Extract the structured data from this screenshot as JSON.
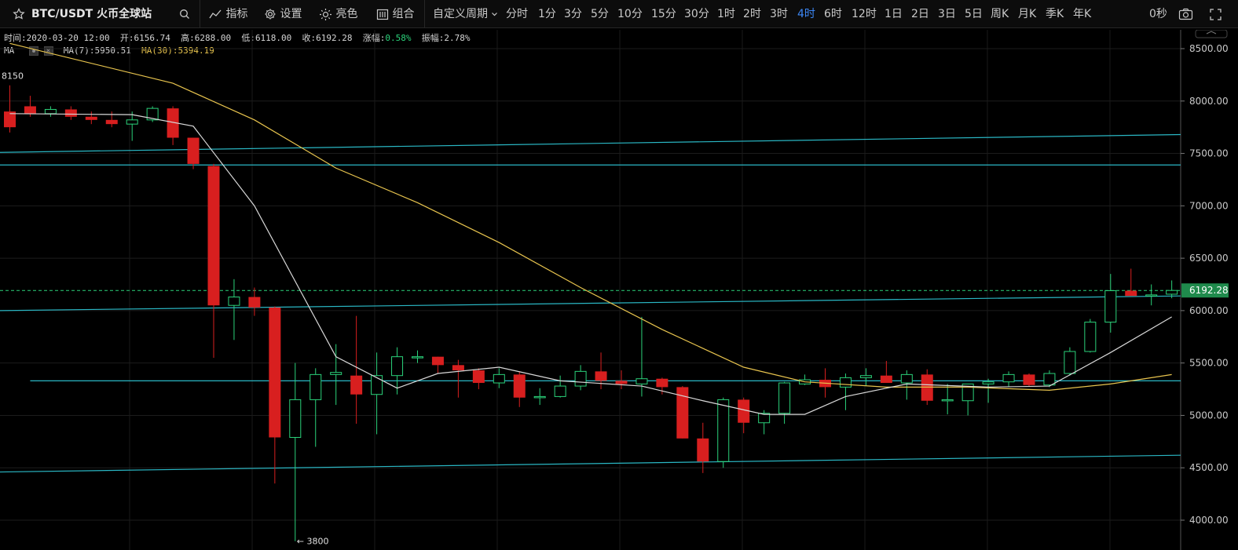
{
  "toolbar": {
    "symbol": "BTC/USDT 火币全球站",
    "buttons": [
      "指标",
      "设置",
      "亮色",
      "组合"
    ],
    "custom_period": "自定义周期",
    "periods": [
      "分时",
      "1分",
      "3分",
      "5分",
      "10分",
      "15分",
      "30分",
      "1时",
      "2时",
      "3时",
      "4时",
      "6时",
      "12时",
      "1日",
      "2日",
      "3日",
      "5日",
      "周K",
      "月K",
      "季K",
      "年K"
    ],
    "active_period": "4时",
    "countdown": "0秒"
  },
  "info": {
    "time_label": "时间:",
    "time": "2020-03-20 12:00",
    "open_label": "开:",
    "open": "6156.74",
    "high_label": "高:",
    "high": "6288.00",
    "low_label": "低:",
    "low": "6118.00",
    "close_label": "收:",
    "close": "6192.28",
    "change_label": "涨幅:",
    "change": "0.58%",
    "amp_label": "振幅:",
    "amp": "2.78%",
    "ma_label": "MA",
    "ma7_label": "MA(7):",
    "ma7": "5950.51",
    "ma30_label": "MA(30):",
    "ma30": "5394.19"
  },
  "colors": {
    "up": "#2bd27a",
    "down": "#d81f1f",
    "ma7": "#d8d8d8",
    "ma30": "#e8c44e",
    "trendline": "#2ab7c4",
    "last_price_bg": "#1f8a4c"
  },
  "chart_data": {
    "type": "candlestick",
    "ylim": [
      3700,
      8800
    ],
    "y_ticks": [
      "8500.00",
      "8000.00",
      "7500.00",
      "7000.00",
      "6500.00",
      "6000.00",
      "5500.00",
      "5000.00",
      "4500.00",
      "4000.00"
    ],
    "y_tick_values": [
      8500,
      8000,
      7500,
      7000,
      6500,
      6000,
      5500,
      5000,
      4500,
      4000
    ],
    "last_price": 6192.28,
    "last_price_label": "6192.28",
    "high_annotation": "8150",
    "low_annotation": "← 3800",
    "candles": [
      {
        "o": 7900,
        "h": 8150,
        "l": 7700,
        "c": 7750
      },
      {
        "o": 7950,
        "h": 8050,
        "l": 7850,
        "c": 7880
      },
      {
        "o": 7880,
        "h": 7950,
        "l": 7850,
        "c": 7920
      },
      {
        "o": 7920,
        "h": 7950,
        "l": 7820,
        "c": 7850
      },
      {
        "o": 7850,
        "h": 7900,
        "l": 7780,
        "c": 7820
      },
      {
        "o": 7820,
        "h": 7900,
        "l": 7750,
        "c": 7780
      },
      {
        "o": 7780,
        "h": 7900,
        "l": 7620,
        "c": 7820
      },
      {
        "o": 7820,
        "h": 7950,
        "l": 7800,
        "c": 7930
      },
      {
        "o": 7930,
        "h": 7950,
        "l": 7580,
        "c": 7650
      },
      {
        "o": 7650,
        "h": 7650,
        "l": 7350,
        "c": 7400
      },
      {
        "o": 7380,
        "h": 7400,
        "l": 5550,
        "c": 6050
      },
      {
        "o": 6050,
        "h": 6300,
        "l": 5720,
        "c": 6130
      },
      {
        "o": 6130,
        "h": 6220,
        "l": 5950,
        "c": 6030
      },
      {
        "o": 6030,
        "h": 6040,
        "l": 4350,
        "c": 4790
      },
      {
        "o": 4790,
        "h": 5500,
        "l": 3800,
        "c": 5150
      },
      {
        "o": 5150,
        "h": 5450,
        "l": 4700,
        "c": 5390
      },
      {
        "o": 5390,
        "h": 5680,
        "l": 5100,
        "c": 5410
      },
      {
        "o": 5380,
        "h": 5950,
        "l": 4920,
        "c": 5200
      },
      {
        "o": 5200,
        "h": 5600,
        "l": 4820,
        "c": 5380
      },
      {
        "o": 5380,
        "h": 5650,
        "l": 5200,
        "c": 5560
      },
      {
        "o": 5560,
        "h": 5620,
        "l": 5500,
        "c": 5560
      },
      {
        "o": 5560,
        "h": 5560,
        "l": 5400,
        "c": 5480
      },
      {
        "o": 5480,
        "h": 5530,
        "l": 5170,
        "c": 5430
      },
      {
        "o": 5430,
        "h": 5450,
        "l": 5250,
        "c": 5310
      },
      {
        "o": 5310,
        "h": 5450,
        "l": 5260,
        "c": 5390
      },
      {
        "o": 5390,
        "h": 5420,
        "l": 5080,
        "c": 5170
      },
      {
        "o": 5170,
        "h": 5260,
        "l": 5100,
        "c": 5180
      },
      {
        "o": 5180,
        "h": 5380,
        "l": 5170,
        "c": 5280
      },
      {
        "o": 5280,
        "h": 5480,
        "l": 5240,
        "c": 5420
      },
      {
        "o": 5420,
        "h": 5600,
        "l": 5250,
        "c": 5330
      },
      {
        "o": 5330,
        "h": 5430,
        "l": 5250,
        "c": 5300
      },
      {
        "o": 5300,
        "h": 5940,
        "l": 5180,
        "c": 5350
      },
      {
        "o": 5350,
        "h": 5360,
        "l": 5200,
        "c": 5270
      },
      {
        "o": 5270,
        "h": 5280,
        "l": 4780,
        "c": 4780
      },
      {
        "o": 4780,
        "h": 4930,
        "l": 4450,
        "c": 4560
      },
      {
        "o": 4560,
        "h": 5170,
        "l": 4500,
        "c": 5150
      },
      {
        "o": 5150,
        "h": 5170,
        "l": 4830,
        "c": 4930
      },
      {
        "o": 4930,
        "h": 5050,
        "l": 4820,
        "c": 5020
      },
      {
        "o": 5020,
        "h": 5320,
        "l": 4920,
        "c": 5310
      },
      {
        "o": 5300,
        "h": 5390,
        "l": 5290,
        "c": 5340
      },
      {
        "o": 5340,
        "h": 5450,
        "l": 5170,
        "c": 5270
      },
      {
        "o": 5270,
        "h": 5400,
        "l": 5050,
        "c": 5360
      },
      {
        "o": 5360,
        "h": 5450,
        "l": 5280,
        "c": 5380
      },
      {
        "o": 5380,
        "h": 5520,
        "l": 5320,
        "c": 5310
      },
      {
        "o": 5310,
        "h": 5430,
        "l": 5150,
        "c": 5390
      },
      {
        "o": 5390,
        "h": 5440,
        "l": 5100,
        "c": 5140
      },
      {
        "o": 5140,
        "h": 5300,
        "l": 5010,
        "c": 5150
      },
      {
        "o": 5140,
        "h": 5300,
        "l": 5000,
        "c": 5300
      },
      {
        "o": 5300,
        "h": 5350,
        "l": 5120,
        "c": 5320
      },
      {
        "o": 5320,
        "h": 5420,
        "l": 5270,
        "c": 5390
      },
      {
        "o": 5390,
        "h": 5400,
        "l": 5280,
        "c": 5290
      },
      {
        "o": 5290,
        "h": 5430,
        "l": 5270,
        "c": 5400
      },
      {
        "o": 5400,
        "h": 5650,
        "l": 5380,
        "c": 5610
      },
      {
        "o": 5610,
        "h": 5920,
        "l": 5600,
        "c": 5890
      },
      {
        "o": 5890,
        "h": 6350,
        "l": 5790,
        "c": 6190
      },
      {
        "o": 6190,
        "h": 6400,
        "l": 6150,
        "c": 6140
      },
      {
        "o": 6140,
        "h": 6250,
        "l": 6050,
        "c": 6150
      },
      {
        "o": 6156.74,
        "h": 6288,
        "l": 6118,
        "c": 6192.28
      }
    ],
    "ma7": [
      [
        0,
        7880
      ],
      [
        6,
        7870
      ],
      [
        9,
        7760
      ],
      [
        12,
        7000
      ],
      [
        16,
        5560
      ],
      [
        19,
        5260
      ],
      [
        21,
        5400
      ],
      [
        24,
        5460
      ],
      [
        27,
        5330
      ],
      [
        31,
        5280
      ],
      [
        34,
        5140
      ],
      [
        37,
        5010
      ],
      [
        39,
        5010
      ],
      [
        41,
        5180
      ],
      [
        44,
        5300
      ],
      [
        48,
        5270
      ],
      [
        51,
        5280
      ],
      [
        54,
        5600
      ],
      [
        57,
        5940
      ]
    ],
    "ma30": [
      [
        0,
        8550
      ],
      [
        8,
        8170
      ],
      [
        12,
        7820
      ],
      [
        16,
        7360
      ],
      [
        20,
        7030
      ],
      [
        24,
        6650
      ],
      [
        28,
        6220
      ],
      [
        32,
        5820
      ],
      [
        36,
        5460
      ],
      [
        39,
        5320
      ],
      [
        43,
        5270
      ],
      [
        47,
        5270
      ],
      [
        51,
        5240
      ],
      [
        54,
        5300
      ],
      [
        57,
        5390
      ]
    ],
    "trendlines": [
      [
        [
          0,
          7510
        ],
        [
          57.5,
          7680
        ]
      ],
      [
        [
          0,
          7390
        ],
        [
          57.5,
          7390
        ]
      ],
      [
        [
          0,
          6000
        ],
        [
          57.5,
          6140
        ]
      ],
      [
        [
          1,
          5330
        ],
        [
          57.5,
          5330
        ]
      ],
      [
        [
          0,
          4460
        ],
        [
          57.5,
          4620
        ]
      ]
    ]
  }
}
